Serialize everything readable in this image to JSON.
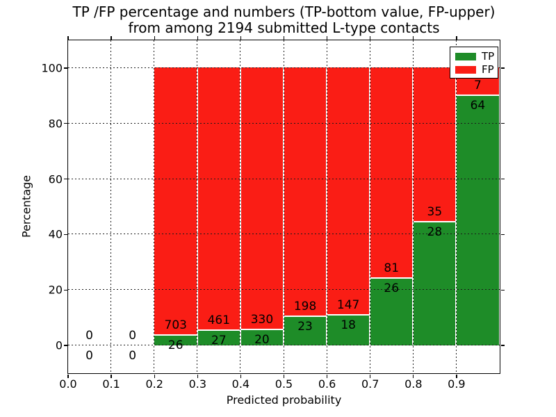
{
  "title": {
    "line1": "TP /FP percentage and numbers (TP-bottom value, FP-upper)",
    "line2": "from among 2194 submitted L-type contacts"
  },
  "colors": {
    "tp_green": "#1e8c28",
    "fp_red": "#fa1d15",
    "grid": "#1a1a1a",
    "background": "#ffffff"
  },
  "chart_data": {
    "type": "bar",
    "stacked": true,
    "title": "TP /FP percentage and numbers (TP-bottom value, FP-upper) from among 2194 submitted L-type contacts",
    "xlabel": "Predicted probability",
    "ylabel": "Percentage",
    "xlim": [
      0.0,
      1.0
    ],
    "ylim": [
      -10,
      110
    ],
    "grid": "dotted",
    "total_contacts": 2194,
    "xticks": [
      {
        "value": 0.0,
        "label": "0.0"
      },
      {
        "value": 0.1,
        "label": "0.1"
      },
      {
        "value": 0.2,
        "label": "0.2"
      },
      {
        "value": 0.3,
        "label": "0.3"
      },
      {
        "value": 0.4,
        "label": "0.4"
      },
      {
        "value": 0.5,
        "label": "0.5"
      },
      {
        "value": 0.6,
        "label": "0.6"
      },
      {
        "value": 0.7,
        "label": "0.7"
      },
      {
        "value": 0.8,
        "label": "0.8"
      },
      {
        "value": 0.9,
        "label": "0.9"
      }
    ],
    "yticks": [
      {
        "value": 0,
        "label": "0"
      },
      {
        "value": 20,
        "label": "20"
      },
      {
        "value": 40,
        "label": "40"
      },
      {
        "value": 60,
        "label": "60"
      },
      {
        "value": 80,
        "label": "80"
      },
      {
        "value": 100,
        "label": "100"
      }
    ],
    "legend": {
      "position": "upper-right",
      "entries": [
        {
          "label": "TP",
          "color": "#1e8c28"
        },
        {
          "label": "FP",
          "color": "#fa1d15"
        }
      ]
    },
    "bins": [
      {
        "x_start": 0.0,
        "x_end": 0.1,
        "tp_count": 0,
        "fp_count": 0,
        "tp_pct": 0,
        "fp_pct": 0
      },
      {
        "x_start": 0.1,
        "x_end": 0.2,
        "tp_count": 0,
        "fp_count": 0,
        "tp_pct": 0,
        "fp_pct": 0
      },
      {
        "x_start": 0.2,
        "x_end": 0.3,
        "tp_count": 26,
        "fp_count": 703,
        "tp_pct": 3.57,
        "fp_pct": 96.43
      },
      {
        "x_start": 0.3,
        "x_end": 0.4,
        "tp_count": 27,
        "fp_count": 461,
        "tp_pct": 5.53,
        "fp_pct": 94.47
      },
      {
        "x_start": 0.4,
        "x_end": 0.5,
        "tp_count": 20,
        "fp_count": 330,
        "tp_pct": 5.71,
        "fp_pct": 94.29
      },
      {
        "x_start": 0.5,
        "x_end": 0.6,
        "tp_count": 23,
        "fp_count": 198,
        "tp_pct": 10.41,
        "fp_pct": 89.59
      },
      {
        "x_start": 0.6,
        "x_end": 0.7,
        "tp_count": 18,
        "fp_count": 147,
        "tp_pct": 10.91,
        "fp_pct": 89.09
      },
      {
        "x_start": 0.7,
        "x_end": 0.8,
        "tp_count": 26,
        "fp_count": 81,
        "tp_pct": 24.3,
        "fp_pct": 75.7
      },
      {
        "x_start": 0.8,
        "x_end": 0.9,
        "tp_count": 28,
        "fp_count": 35,
        "tp_pct": 44.44,
        "fp_pct": 55.56
      },
      {
        "x_start": 0.9,
        "x_end": 1.0,
        "tp_count": 64,
        "fp_count": 7,
        "tp_pct": 90.14,
        "fp_pct": 9.86
      }
    ]
  }
}
